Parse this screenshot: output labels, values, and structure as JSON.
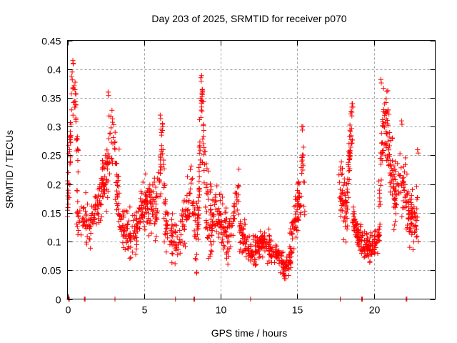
{
  "chart_data": {
    "type": "scatter",
    "title": "Day 203 of 2025, SRMTID for receiver p070",
    "xlabel": "GPS time / hours",
    "ylabel": "SRMTID / TECUs",
    "xlim": [
      0,
      24
    ],
    "ylim": [
      0,
      0.45
    ],
    "x_ticks": [
      0,
      5,
      10,
      15,
      20
    ],
    "x_tick_labels": [
      "0",
      "5",
      "10",
      "15",
      "20"
    ],
    "y_ticks": [
      0,
      0.05,
      0.1,
      0.15,
      0.2,
      0.25,
      0.3,
      0.35,
      0.4,
      0.45
    ],
    "y_tick_labels": [
      "0",
      "0.05",
      "0.1",
      "0.15",
      "0.2",
      "0.25",
      "0.3",
      "0.35",
      "0.4",
      "0.45"
    ],
    "grid": true,
    "legend": "none",
    "marker": "+",
    "color": "#ff0000",
    "zero_markers_x": [
      0.08,
      0.12,
      1.1,
      1.15,
      3.1,
      7.05,
      8.25,
      8.3,
      11.95,
      17.8,
      19.2,
      19.25,
      22.1,
      22.15
    ],
    "clusters": [
      {
        "t0": 0.0,
        "t1": 0.7,
        "vmin": 0.14,
        "vmax": 0.41,
        "n": 70,
        "trend": [
          [
            0.0,
            0.17
          ],
          [
            0.15,
            0.25
          ],
          [
            0.3,
            0.38
          ],
          [
            0.45,
            0.36
          ],
          [
            0.6,
            0.3
          ],
          [
            0.7,
            0.24
          ]
        ]
      },
      {
        "t0": 0.6,
        "t1": 2.4,
        "vmin": 0.05,
        "vmax": 0.25,
        "n": 120,
        "trend": [
          [
            0.6,
            0.15
          ],
          [
            1.0,
            0.14
          ],
          [
            1.4,
            0.12
          ],
          [
            1.8,
            0.16
          ],
          [
            2.2,
            0.18
          ],
          [
            2.4,
            0.2
          ]
        ]
      },
      {
        "t0": 2.2,
        "t1": 3.4,
        "vmin": 0.09,
        "vmax": 0.36,
        "n": 90,
        "trend": [
          [
            2.2,
            0.2
          ],
          [
            2.6,
            0.22
          ],
          [
            2.8,
            0.3
          ],
          [
            3.0,
            0.26
          ],
          [
            3.2,
            0.2
          ],
          [
            3.4,
            0.18
          ]
        ]
      },
      {
        "t0": 3.2,
        "t1": 5.2,
        "vmin": 0.06,
        "vmax": 0.24,
        "n": 140,
        "trend": [
          [
            3.2,
            0.17
          ],
          [
            3.6,
            0.14
          ],
          [
            4.0,
            0.12
          ],
          [
            4.4,
            0.11
          ],
          [
            4.8,
            0.15
          ],
          [
            5.2,
            0.17
          ]
        ]
      },
      {
        "t0": 5.0,
        "t1": 6.4,
        "vmin": 0.1,
        "vmax": 0.32,
        "n": 110,
        "trend": [
          [
            5.0,
            0.17
          ],
          [
            5.4,
            0.16
          ],
          [
            5.8,
            0.15
          ],
          [
            6.0,
            0.2
          ],
          [
            6.2,
            0.29
          ],
          [
            6.4,
            0.14
          ]
        ]
      },
      {
        "t0": 6.3,
        "t1": 8.4,
        "vmin": 0.05,
        "vmax": 0.24,
        "n": 130,
        "trend": [
          [
            6.3,
            0.13
          ],
          [
            6.8,
            0.11
          ],
          [
            7.3,
            0.1
          ],
          [
            7.8,
            0.15
          ],
          [
            8.1,
            0.2
          ],
          [
            8.4,
            0.09
          ]
        ]
      },
      {
        "t0": 8.4,
        "t1": 9.4,
        "vmin": 0.04,
        "vmax": 0.39,
        "n": 110,
        "trend": [
          [
            8.4,
            0.08
          ],
          [
            8.6,
            0.2
          ],
          [
            8.75,
            0.35
          ],
          [
            8.9,
            0.27
          ],
          [
            9.1,
            0.17
          ],
          [
            9.4,
            0.12
          ]
        ]
      },
      {
        "t0": 9.3,
        "t1": 11.2,
        "vmin": 0.05,
        "vmax": 0.24,
        "n": 140,
        "trend": [
          [
            9.3,
            0.12
          ],
          [
            9.7,
            0.15
          ],
          [
            10.1,
            0.13
          ],
          [
            10.5,
            0.1
          ],
          [
            10.9,
            0.16
          ],
          [
            11.2,
            0.18
          ]
        ]
      },
      {
        "t0": 11.2,
        "t1": 13.2,
        "vmin": 0.04,
        "vmax": 0.17,
        "n": 150,
        "trend": [
          [
            11.2,
            0.12
          ],
          [
            11.6,
            0.1
          ],
          [
            12.0,
            0.08
          ],
          [
            12.4,
            0.09
          ],
          [
            12.8,
            0.1
          ],
          [
            13.2,
            0.09
          ]
        ]
      },
      {
        "t0": 13.1,
        "t1": 14.6,
        "vmin": 0.03,
        "vmax": 0.13,
        "n": 120,
        "trend": [
          [
            13.1,
            0.09
          ],
          [
            13.5,
            0.08
          ],
          [
            13.9,
            0.07
          ],
          [
            14.2,
            0.05
          ],
          [
            14.6,
            0.07
          ]
        ]
      },
      {
        "t0": 14.5,
        "t1": 15.5,
        "vmin": 0.08,
        "vmax": 0.3,
        "n": 90,
        "trend": [
          [
            14.5,
            0.1
          ],
          [
            14.8,
            0.13
          ],
          [
            15.0,
            0.16
          ],
          [
            15.2,
            0.17
          ],
          [
            15.35,
            0.27
          ],
          [
            15.5,
            0.15
          ]
        ]
      },
      {
        "t0": 17.7,
        "t1": 18.6,
        "vmin": 0.09,
        "vmax": 0.34,
        "n": 100,
        "trend": [
          [
            17.7,
            0.21
          ],
          [
            18.0,
            0.17
          ],
          [
            18.2,
            0.15
          ],
          [
            18.4,
            0.24
          ],
          [
            18.55,
            0.32
          ],
          [
            18.6,
            0.28
          ]
        ]
      },
      {
        "t0": 18.6,
        "t1": 20.4,
        "vmin": 0.06,
        "vmax": 0.16,
        "n": 160,
        "trend": [
          [
            18.6,
            0.14
          ],
          [
            19.0,
            0.11
          ],
          [
            19.4,
            0.09
          ],
          [
            19.8,
            0.09
          ],
          [
            20.2,
            0.1
          ],
          [
            20.4,
            0.11
          ]
        ]
      },
      {
        "t0": 20.3,
        "t1": 21.4,
        "vmin": 0.11,
        "vmax": 0.38,
        "n": 110,
        "trend": [
          [
            20.3,
            0.14
          ],
          [
            20.5,
            0.24
          ],
          [
            20.6,
            0.32
          ],
          [
            20.9,
            0.3
          ],
          [
            21.1,
            0.24
          ],
          [
            21.4,
            0.2
          ]
        ]
      },
      {
        "t0": 21.3,
        "t1": 22.9,
        "vmin": 0.08,
        "vmax": 0.31,
        "n": 130,
        "trend": [
          [
            21.3,
            0.15
          ],
          [
            21.7,
            0.22
          ],
          [
            22.0,
            0.19
          ],
          [
            22.3,
            0.15
          ],
          [
            22.6,
            0.13
          ],
          [
            22.9,
            0.15
          ]
        ]
      }
    ],
    "peaks": [
      {
        "t": 0.35,
        "v": 0.415
      },
      {
        "t": 2.65,
        "v": 0.36
      },
      {
        "t": 6.05,
        "v": 0.32
      },
      {
        "t": 8.7,
        "v": 0.385
      },
      {
        "t": 15.3,
        "v": 0.3
      },
      {
        "t": 18.6,
        "v": 0.34
      },
      {
        "t": 20.45,
        "v": 0.382
      },
      {
        "t": 21.8,
        "v": 0.31
      },
      {
        "t": 22.85,
        "v": 0.26
      }
    ]
  }
}
